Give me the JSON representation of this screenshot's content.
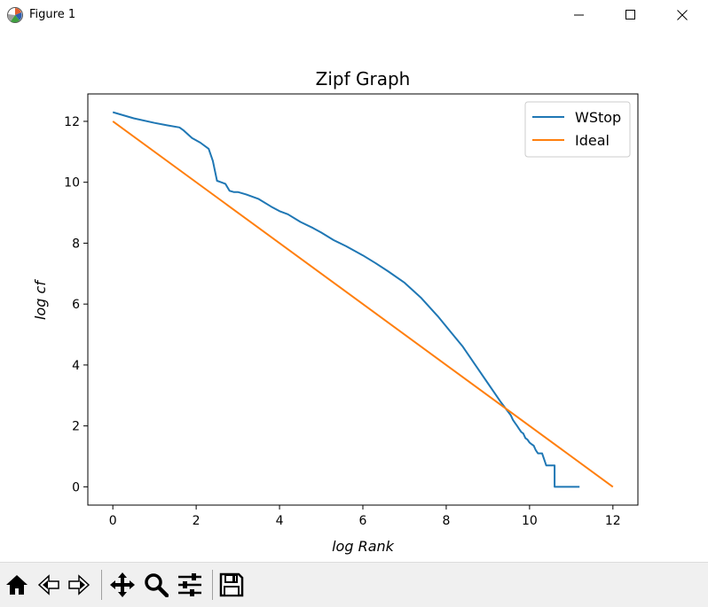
{
  "window": {
    "title": "Figure 1",
    "icons": [
      "matplotlib-icon",
      "minimize-icon",
      "maximize-icon",
      "close-icon"
    ]
  },
  "toolbar": {
    "buttons": [
      "home-icon",
      "back-icon",
      "forward-icon",
      "pan-icon",
      "zoom-icon",
      "configure-subplots-icon",
      "save-icon"
    ]
  },
  "chart_data": {
    "type": "line",
    "title": "Zipf Graph",
    "xlabel": "log Rank",
    "ylabel": "log cf",
    "xlim": [
      -0.6,
      12.6
    ],
    "ylim": [
      -0.6,
      12.9
    ],
    "xticks": [
      0,
      2,
      4,
      6,
      8,
      10,
      12
    ],
    "yticks": [
      0,
      2,
      4,
      6,
      8,
      10,
      12
    ],
    "grid": false,
    "legend_position": "upper right",
    "colors": {
      "WStop": "#1f77b4",
      "Ideal": "#ff7f0e"
    },
    "series": [
      {
        "name": "WStop",
        "x": [
          0,
          0.5,
          1.0,
          1.3,
          1.6,
          1.7,
          1.9,
          2.1,
          2.3,
          2.4,
          2.5,
          2.6,
          2.7,
          2.8,
          2.9,
          3.0,
          3.2,
          3.5,
          3.8,
          4.0,
          4.2,
          4.5,
          4.8,
          5.0,
          5.3,
          5.6,
          6.0,
          6.3,
          6.6,
          7.0,
          7.4,
          7.8,
          8.1,
          8.4,
          8.7,
          9.0,
          9.3,
          9.55,
          9.6,
          9.65,
          9.7,
          9.75,
          9.8,
          9.85,
          9.9,
          9.95,
          10.0,
          10.05,
          10.1,
          10.15,
          10.2,
          10.3,
          10.4,
          10.5,
          10.6,
          10.6,
          10.8,
          11.0,
          11.2
        ],
        "y": [
          12.3,
          12.1,
          11.95,
          11.87,
          11.8,
          11.7,
          11.45,
          11.3,
          11.1,
          10.7,
          10.05,
          10.0,
          9.95,
          9.72,
          9.68,
          9.68,
          9.6,
          9.45,
          9.2,
          9.05,
          8.95,
          8.7,
          8.5,
          8.35,
          8.1,
          7.9,
          7.6,
          7.35,
          7.08,
          6.7,
          6.2,
          5.6,
          5.1,
          4.6,
          4.0,
          3.4,
          2.8,
          2.35,
          2.2,
          2.1,
          2.0,
          1.9,
          1.8,
          1.75,
          1.6,
          1.55,
          1.45,
          1.4,
          1.35,
          1.2,
          1.1,
          1.1,
          0.7,
          0.7,
          0.7,
          0.0,
          0.0,
          0.0,
          0.0
        ]
      },
      {
        "name": "Ideal",
        "x": [
          0,
          12
        ],
        "y": [
          12,
          0
        ]
      }
    ]
  }
}
